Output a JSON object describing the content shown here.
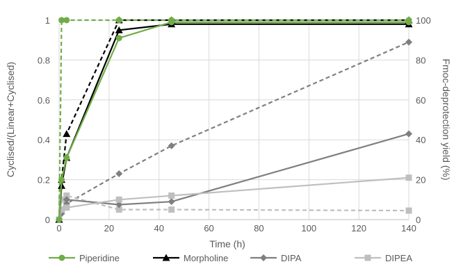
{
  "chart_data": {
    "type": "line",
    "xlabel": "Time (h)",
    "ylabel": "Cyclised/(Linear+Cyclised)",
    "y2label": "Fmoc-deprotection yield (%)",
    "xlim": [
      0,
      140
    ],
    "ylim": [
      0,
      1
    ],
    "y2lim": [
      0,
      100
    ],
    "xticks": [
      "0",
      "20",
      "40",
      "60",
      "80",
      "100",
      "120",
      "140"
    ],
    "yticks": [
      "0",
      "0.2",
      "0.4",
      "0.6",
      "0.8",
      "1"
    ],
    "y2ticks": [
      "0",
      "20",
      "40",
      "60",
      "80",
      "100"
    ],
    "grid": true,
    "legend_position": "bottom",
    "series": [
      {
        "name": "Piperidine",
        "color": "#70ad47",
        "marker": "circle",
        "solid": {
          "x": [
            0,
            1,
            3,
            24,
            45,
            140
          ],
          "y": [
            0,
            0.2,
            0.31,
            0.91,
            0.99,
            0.99
          ]
        },
        "dashed": {
          "x": [
            0,
            1,
            3,
            24,
            45,
            140
          ],
          "y2": [
            0,
            100,
            100,
            100,
            100,
            100
          ]
        }
      },
      {
        "name": "Morpholine",
        "color": "#000000",
        "marker": "triangle",
        "solid": {
          "x": [
            0,
            1,
            3,
            24,
            45,
            140
          ],
          "y": [
            0,
            0.17,
            0.31,
            0.95,
            0.98,
            0.98
          ]
        },
        "dashed": {
          "x": [
            0,
            1,
            3,
            24,
            45,
            140
          ],
          "y2": [
            0,
            20,
            43,
            100,
            100,
            100
          ]
        }
      },
      {
        "name": "DIPA",
        "color": "#7f7f7f",
        "marker": "diamond",
        "solid": {
          "x": [
            0,
            1,
            3,
            24,
            45,
            140
          ],
          "y": [
            0,
            0.04,
            0.1,
            0.075,
            0.09,
            0.43
          ]
        },
        "dashed": {
          "x": [
            0,
            1,
            3,
            24,
            45,
            140
          ],
          "y2": [
            0,
            3,
            8,
            23,
            37,
            89
          ]
        }
      },
      {
        "name": "DIPEA",
        "color": "#bfbfbf",
        "marker": "square",
        "solid": {
          "x": [
            0,
            1,
            3,
            24,
            45,
            140
          ],
          "y": [
            0,
            0.05,
            0.06,
            0.1,
            0.12,
            0.21
          ]
        },
        "dashed": {
          "x": [
            0,
            1,
            3,
            24,
            45,
            140
          ],
          "y2": [
            0,
            10,
            12,
            5,
            5,
            4.5
          ]
        }
      }
    ]
  }
}
